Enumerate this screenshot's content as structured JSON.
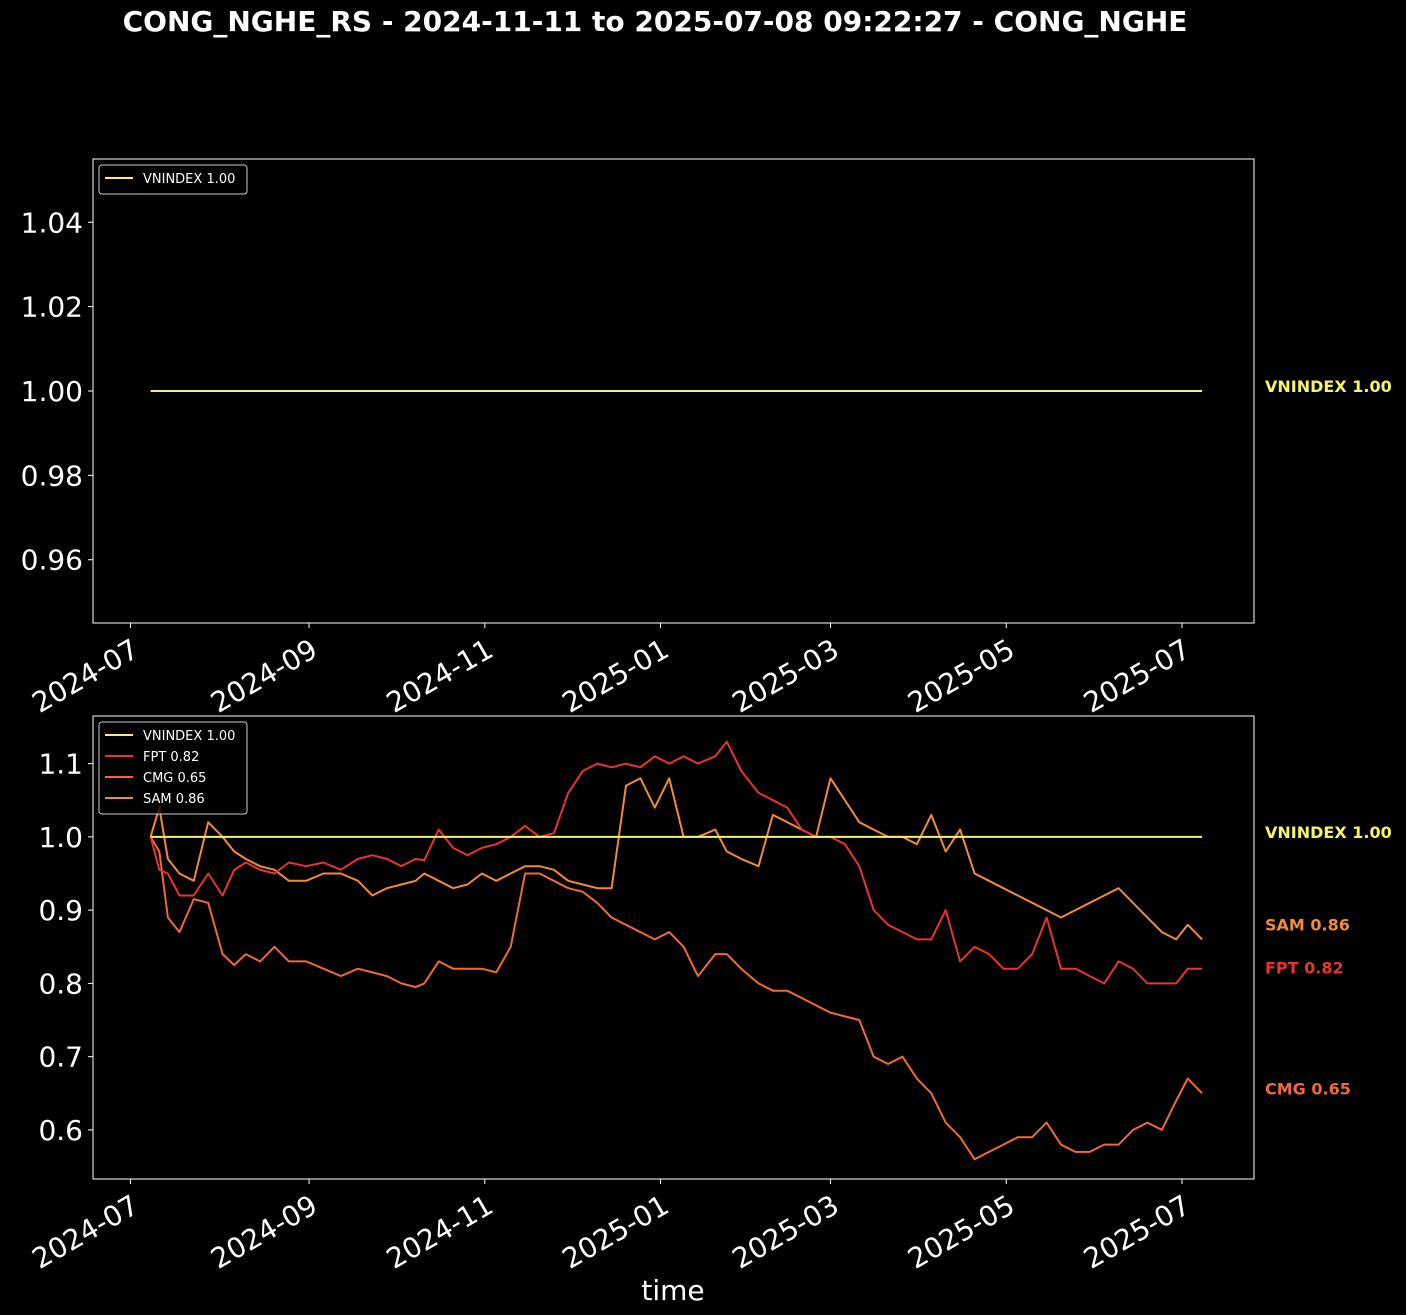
{
  "title": "CONG_NGHE_RS - 2024-11-11 to 2025-07-08 09:22:27 - CONG_NGHE",
  "xlabel": "time",
  "colors": {
    "background": "#000000",
    "axes": "#ffffff",
    "VNINDEX": "#f5f36b",
    "FPT": "#e8342f",
    "CMG": "#ef6a3a",
    "SAM": "#f08a3c"
  },
  "x_ticks": [
    "2024-07",
    "2024-09",
    "2024-11",
    "2025-01",
    "2025-03",
    "2025-05",
    "2025-07"
  ],
  "chart_data": [
    {
      "type": "line",
      "legend_position": "top-left",
      "xlim": [
        "2024-06-18",
        "2025-07-26"
      ],
      "ylim": [
        0.945,
        1.055
      ],
      "y_ticks": [
        "0.96",
        "0.98",
        "1.00",
        "1.02",
        "1.04"
      ],
      "legend": [
        "VNINDEX 1.00"
      ],
      "end_labels": [
        "VNINDEX 1.00"
      ],
      "series": [
        {
          "name": "VNINDEX",
          "x": [
            "2024-07-08",
            "2025-07-08"
          ],
          "values": [
            1.0,
            1.0
          ]
        }
      ]
    },
    {
      "type": "line",
      "legend_position": "top-left",
      "xlim": [
        "2024-06-18",
        "2025-07-26"
      ],
      "ylim": [
        0.533,
        1.165
      ],
      "y_ticks": [
        "0.6",
        "0.7",
        "0.8",
        "0.9",
        "1.0",
        "1.1"
      ],
      "legend": [
        "VNINDEX 1.00",
        "FPT 0.82",
        "CMG 0.65",
        "SAM 0.86"
      ],
      "end_labels": [
        "VNINDEX 1.00",
        "SAM 0.86",
        "FPT 0.82",
        "CMG 0.65"
      ],
      "series": [
        {
          "name": "VNINDEX",
          "x": [
            "2024-07-08",
            "2025-07-08"
          ],
          "values": [
            1.0,
            1.0
          ]
        },
        {
          "name": "FPT",
          "x": [
            "2024-07-08",
            "2024-07-11",
            "2024-07-14",
            "2024-07-18",
            "2024-07-23",
            "2024-07-28",
            "2024-08-02",
            "2024-08-06",
            "2024-08-10",
            "2024-08-15",
            "2024-08-20",
            "2024-08-25",
            "2024-08-31",
            "2024-09-06",
            "2024-09-12",
            "2024-09-18",
            "2024-09-23",
            "2024-09-28",
            "2024-10-03",
            "2024-10-08",
            "2024-10-11",
            "2024-10-16",
            "2024-10-21",
            "2024-10-26",
            "2024-10-31",
            "2024-11-05",
            "2024-11-10",
            "2024-11-15",
            "2024-11-20",
            "2024-11-25",
            "2024-11-30",
            "2024-12-05",
            "2024-12-10",
            "2024-12-15",
            "2024-12-20",
            "2024-12-25",
            "2024-12-30",
            "2025-01-04",
            "2025-01-09",
            "2025-01-14",
            "2025-01-20",
            "2025-01-24",
            "2025-01-29",
            "2025-02-04",
            "2025-02-09",
            "2025-02-14",
            "2025-02-19",
            "2025-02-24",
            "2025-03-01",
            "2025-03-06",
            "2025-03-11",
            "2025-03-16",
            "2025-03-21",
            "2025-03-26",
            "2025-03-31",
            "2025-04-05",
            "2025-04-10",
            "2025-04-15",
            "2025-04-20",
            "2025-04-25",
            "2025-04-30",
            "2025-05-05",
            "2025-05-10",
            "2025-05-15",
            "2025-05-20",
            "2025-05-25",
            "2025-05-30",
            "2025-06-04",
            "2025-06-09",
            "2025-06-14",
            "2025-06-19",
            "2025-06-24",
            "2025-06-29",
            "2025-07-03",
            "2025-07-08"
          ],
          "values": [
            1.0,
            0.955,
            0.95,
            0.92,
            0.92,
            0.95,
            0.92,
            0.955,
            0.965,
            0.955,
            0.95,
            0.965,
            0.96,
            0.965,
            0.955,
            0.97,
            0.975,
            0.97,
            0.96,
            0.97,
            0.968,
            1.01,
            0.985,
            0.975,
            0.985,
            0.99,
            1.0,
            1.015,
            1.0,
            1.005,
            1.06,
            1.09,
            1.1,
            1.095,
            1.1,
            1.095,
            1.11,
            1.1,
            1.11,
            1.1,
            1.11,
            1.13,
            1.09,
            1.06,
            1.05,
            1.04,
            1.01,
            1.0,
            1.0,
            0.99,
            0.96,
            0.9,
            0.88,
            0.87,
            0.86,
            0.86,
            0.9,
            0.83,
            0.85,
            0.84,
            0.82,
            0.82,
            0.84,
            0.89,
            0.82,
            0.82,
            0.81,
            0.8,
            0.83,
            0.82,
            0.8,
            0.8,
            0.8,
            0.82,
            0.82
          ]
        },
        {
          "name": "CMG",
          "x": [
            "2024-07-08",
            "2024-07-11",
            "2024-07-14",
            "2024-07-18",
            "2024-07-23",
            "2024-07-28",
            "2024-08-02",
            "2024-08-06",
            "2024-08-10",
            "2024-08-15",
            "2024-08-20",
            "2024-08-25",
            "2024-08-31",
            "2024-09-06",
            "2024-09-12",
            "2024-09-18",
            "2024-09-23",
            "2024-09-28",
            "2024-10-03",
            "2024-10-08",
            "2024-10-11",
            "2024-10-16",
            "2024-10-21",
            "2024-10-26",
            "2024-10-31",
            "2024-11-05",
            "2024-11-10",
            "2024-11-15",
            "2024-11-20",
            "2024-11-25",
            "2024-11-30",
            "2024-12-05",
            "2024-12-10",
            "2024-12-15",
            "2024-12-20",
            "2024-12-25",
            "2024-12-30",
            "2025-01-04",
            "2025-01-09",
            "2025-01-14",
            "2025-01-20",
            "2025-01-24",
            "2025-01-29",
            "2025-02-04",
            "2025-02-09",
            "2025-02-14",
            "2025-02-19",
            "2025-02-24",
            "2025-03-01",
            "2025-03-06",
            "2025-03-11",
            "2025-03-16",
            "2025-03-21",
            "2025-03-26",
            "2025-03-31",
            "2025-04-05",
            "2025-04-10",
            "2025-04-15",
            "2025-04-20",
            "2025-04-25",
            "2025-04-30",
            "2025-05-05",
            "2025-05-10",
            "2025-05-15",
            "2025-05-20",
            "2025-05-25",
            "2025-05-30",
            "2025-06-04",
            "2025-06-09",
            "2025-06-14",
            "2025-06-19",
            "2025-06-24",
            "2025-06-29",
            "2025-07-03",
            "2025-07-08"
          ],
          "values": [
            1.0,
            0.98,
            0.89,
            0.87,
            0.915,
            0.91,
            0.84,
            0.825,
            0.84,
            0.83,
            0.85,
            0.83,
            0.83,
            0.82,
            0.81,
            0.82,
            0.815,
            0.81,
            0.8,
            0.795,
            0.8,
            0.83,
            0.82,
            0.82,
            0.82,
            0.815,
            0.85,
            0.95,
            0.95,
            0.94,
            0.93,
            0.925,
            0.91,
            0.89,
            0.88,
            0.87,
            0.86,
            0.87,
            0.85,
            0.81,
            0.84,
            0.84,
            0.82,
            0.8,
            0.79,
            0.79,
            0.78,
            0.77,
            0.76,
            0.755,
            0.75,
            0.7,
            0.69,
            0.7,
            0.67,
            0.65,
            0.61,
            0.59,
            0.56,
            0.57,
            0.58,
            0.59,
            0.59,
            0.61,
            0.58,
            0.57,
            0.57,
            0.58,
            0.58,
            0.6,
            0.61,
            0.6,
            0.64,
            0.67,
            0.65
          ]
        },
        {
          "name": "SAM",
          "x": [
            "2024-07-08",
            "2024-07-11",
            "2024-07-14",
            "2024-07-18",
            "2024-07-23",
            "2024-07-28",
            "2024-08-02",
            "2024-08-06",
            "2024-08-10",
            "2024-08-15",
            "2024-08-20",
            "2024-08-25",
            "2024-08-31",
            "2024-09-06",
            "2024-09-12",
            "2024-09-18",
            "2024-09-23",
            "2024-09-28",
            "2024-10-03",
            "2024-10-08",
            "2024-10-11",
            "2024-10-16",
            "2024-10-21",
            "2024-10-26",
            "2024-10-31",
            "2024-11-05",
            "2024-11-10",
            "2024-11-15",
            "2024-11-20",
            "2024-11-25",
            "2024-11-30",
            "2024-12-05",
            "2024-12-10",
            "2024-12-15",
            "2024-12-20",
            "2024-12-25",
            "2024-12-30",
            "2025-01-04",
            "2025-01-09",
            "2025-01-14",
            "2025-01-20",
            "2025-01-24",
            "2025-01-29",
            "2025-02-04",
            "2025-02-09",
            "2025-02-14",
            "2025-02-19",
            "2025-02-24",
            "2025-03-01",
            "2025-03-06",
            "2025-03-11",
            "2025-03-16",
            "2025-03-21",
            "2025-03-26",
            "2025-03-31",
            "2025-04-05",
            "2025-04-10",
            "2025-04-15",
            "2025-04-20",
            "2025-04-25",
            "2025-04-30",
            "2025-05-05",
            "2025-05-10",
            "2025-05-15",
            "2025-05-20",
            "2025-05-25",
            "2025-05-30",
            "2025-06-04",
            "2025-06-09",
            "2025-06-14",
            "2025-06-19",
            "2025-06-24",
            "2025-06-29",
            "2025-07-03",
            "2025-07-08"
          ],
          "values": [
            1.0,
            1.04,
            0.97,
            0.95,
            0.94,
            1.02,
            1.0,
            0.98,
            0.97,
            0.96,
            0.955,
            0.94,
            0.94,
            0.95,
            0.95,
            0.94,
            0.92,
            0.93,
            0.935,
            0.94,
            0.95,
            0.94,
            0.93,
            0.935,
            0.95,
            0.94,
            0.95,
            0.96,
            0.96,
            0.955,
            0.94,
            0.935,
            0.93,
            0.93,
            1.07,
            1.08,
            1.04,
            1.08,
            1.0,
            1.0,
            1.01,
            0.98,
            0.97,
            0.96,
            1.03,
            1.02,
            1.01,
            1.0,
            1.08,
            1.05,
            1.02,
            1.01,
            1.0,
            1.0,
            0.99,
            1.03,
            0.98,
            1.01,
            0.95,
            0.94,
            0.93,
            0.92,
            0.91,
            0.9,
            0.89,
            0.9,
            0.91,
            0.92,
            0.93,
            0.91,
            0.89,
            0.87,
            0.86,
            0.88,
            0.86
          ]
        }
      ]
    }
  ]
}
